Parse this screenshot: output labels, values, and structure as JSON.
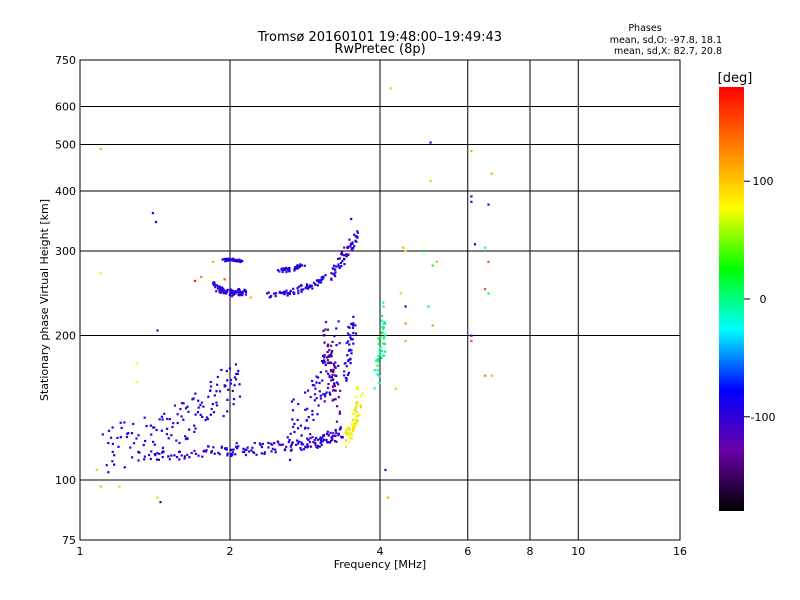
{
  "chart_data": {
    "type": "scatter",
    "title": "Tromsø 20160101 19:48:00–19:49:43",
    "subtitle": "RwPretec (8p)",
    "xlabel": "Frequency [MHz]",
    "ylabel": "Stationary phase Virtual Height [km]",
    "x_scale": "log",
    "y_scale": "log",
    "xlim": [
      1,
      16
    ],
    "ylim": [
      75,
      750
    ],
    "x_ticks": [
      1,
      2,
      4,
      6,
      8,
      10,
      16
    ],
    "y_ticks": [
      75,
      100,
      200,
      300,
      400,
      500,
      600,
      750
    ],
    "x_gridlines": [
      2,
      4,
      6,
      8,
      10
    ],
    "y_gridlines": [
      100,
      200,
      300,
      400,
      500,
      600
    ],
    "grid": true,
    "stats": {
      "heading": "Phases",
      "line_o": "mean, sd,O: -97.8, 18.1",
      "line_x": "mean, sd,X:  82.7, 20.8"
    },
    "colorbar": {
      "label": "[deg]",
      "range": [
        -180,
        180
      ],
      "ticks": [
        100,
        0,
        -100
      ],
      "stops": [
        "#000000",
        "#6a00a8",
        "#0000ff",
        "#00ffff",
        "#00ff00",
        "#ffff00",
        "#ff8000",
        "#ff0000"
      ]
    },
    "traces": [
      {
        "x": [
          1.38,
          1.55,
          1.75,
          1.95,
          2.05,
          2.2,
          2.4,
          2.6,
          2.8,
          2.95,
          3.05,
          3.15,
          3.25,
          3.35
        ],
        "y": [
          112,
          113,
          114,
          115,
          116,
          116,
          117,
          118,
          119,
          120,
          121,
          122,
          124,
          126
        ],
        "phase": -100,
        "spread": 0.06
      },
      {
        "x": [
          1.12,
          1.2,
          1.3,
          1.4,
          1.5,
          1.6,
          1.7,
          1.8,
          1.9,
          2.0,
          2.1
        ],
        "y": [
          115,
          118,
          121,
          124,
          128,
          133,
          138,
          144,
          150,
          156,
          162
        ],
        "phase": -95,
        "spread": 0.22
      },
      {
        "x": [
          2.6,
          2.75,
          2.9,
          3.0,
          3.1,
          3.2,
          3.3
        ],
        "y": [
          125,
          132,
          140,
          150,
          160,
          175,
          195
        ],
        "phase": -95,
        "spread": 0.28
      },
      {
        "x": [
          3.1,
          3.15,
          3.2,
          3.25,
          3.3
        ],
        "y": [
          200,
          185,
          170,
          155,
          140
        ],
        "phase": -130,
        "spread": 0.2
      },
      {
        "x": [
          3.4,
          3.5,
          3.55,
          3.6,
          3.65
        ],
        "y": [
          122,
          125,
          130,
          140,
          155
        ],
        "phase": 80,
        "spread": 0.08
      },
      {
        "x": [
          3.4,
          3.45,
          3.5,
          3.55
        ],
        "y": [
          165,
          180,
          200,
          215
        ],
        "phase": -90,
        "spread": 0.1
      },
      {
        "x": [
          1.85,
          1.9,
          1.95,
          2.0,
          2.05,
          2.1,
          2.15
        ],
        "y": [
          255,
          250,
          248,
          245,
          247,
          246,
          245
        ],
        "phase": -100,
        "spread": 0.03
      },
      {
        "x": [
          2.4,
          2.55,
          2.7,
          2.85,
          3.0,
          3.1
        ],
        "y": [
          243,
          245,
          248,
          252,
          258,
          265
        ],
        "phase": -95,
        "spread": 0.03
      },
      {
        "x": [
          3.2,
          3.3,
          3.4,
          3.5,
          3.6
        ],
        "y": [
          265,
          280,
          295,
          310,
          325
        ],
        "phase": -105,
        "spread": 0.04
      },
      {
        "x": [
          1.95,
          2.0,
          2.05,
          2.1
        ],
        "y": [
          287,
          288,
          287,
          286
        ],
        "phase": -100,
        "spread": 0.01
      },
      {
        "x": [
          2.5,
          2.6,
          2.7,
          2.8
        ],
        "y": [
          272,
          274,
          276,
          280
        ],
        "phase": -90,
        "spread": 0.02
      },
      {
        "x": [
          3.9,
          4.0,
          4.05,
          4.1
        ],
        "y": [
          160,
          180,
          200,
          220
        ],
        "phase": 0,
        "spread": 0.15
      }
    ],
    "points": [
      {
        "x": 1.1,
        "y": 490,
        "phase": 110
      },
      {
        "x": 1.1,
        "y": 270,
        "phase": 80
      },
      {
        "x": 1.08,
        "y": 105,
        "phase": 100
      },
      {
        "x": 1.1,
        "y": 97,
        "phase": 110
      },
      {
        "x": 1.2,
        "y": 97,
        "phase": 100
      },
      {
        "x": 1.4,
        "y": 360,
        "phase": -100
      },
      {
        "x": 1.42,
        "y": 345,
        "phase": -100
      },
      {
        "x": 1.43,
        "y": 205,
        "phase": -100
      },
      {
        "x": 1.45,
        "y": 90,
        "phase": -110
      },
      {
        "x": 1.43,
        "y": 92,
        "phase": 100
      },
      {
        "x": 4.2,
        "y": 655,
        "phase": 100
      },
      {
        "x": 5.05,
        "y": 505,
        "phase": -110
      },
      {
        "x": 5.05,
        "y": 420,
        "phase": 100
      },
      {
        "x": 6.1,
        "y": 485,
        "phase": 110
      },
      {
        "x": 6.1,
        "y": 390,
        "phase": -100
      },
      {
        "x": 6.1,
        "y": 380,
        "phase": -105
      },
      {
        "x": 6.6,
        "y": 375,
        "phase": -105
      },
      {
        "x": 6.7,
        "y": 435,
        "phase": 110
      },
      {
        "x": 6.2,
        "y": 310,
        "phase": -80
      },
      {
        "x": 6.5,
        "y": 305,
        "phase": 0
      },
      {
        "x": 6.6,
        "y": 285,
        "phase": 150
      },
      {
        "x": 6.5,
        "y": 250,
        "phase": 150
      },
      {
        "x": 6.6,
        "y": 245,
        "phase": 0
      },
      {
        "x": 6.1,
        "y": 195,
        "phase": 150
      },
      {
        "x": 6.1,
        "y": 200,
        "phase": -100
      },
      {
        "x": 6.5,
        "y": 165,
        "phase": 130
      },
      {
        "x": 6.7,
        "y": 165,
        "phase": 110
      },
      {
        "x": 4.45,
        "y": 305,
        "phase": 110
      },
      {
        "x": 4.5,
        "y": 300,
        "phase": 80
      },
      {
        "x": 4.4,
        "y": 245,
        "phase": 100
      },
      {
        "x": 4.5,
        "y": 230,
        "phase": -100
      },
      {
        "x": 4.5,
        "y": 212,
        "phase": 130
      },
      {
        "x": 4.5,
        "y": 195,
        "phase": 110
      },
      {
        "x": 4.3,
        "y": 155,
        "phase": 100
      },
      {
        "x": 4.1,
        "y": 105,
        "phase": -110
      },
      {
        "x": 4.15,
        "y": 92,
        "phase": 110
      },
      {
        "x": 4.9,
        "y": 300,
        "phase": 20
      },
      {
        "x": 5.1,
        "y": 280,
        "phase": 20
      },
      {
        "x": 5.2,
        "y": 285,
        "phase": 110
      },
      {
        "x": 5.0,
        "y": 230,
        "phase": 0
      },
      {
        "x": 5.1,
        "y": 210,
        "phase": 120
      },
      {
        "x": 1.3,
        "y": 175,
        "phase": 80
      },
      {
        "x": 1.3,
        "y": 160,
        "phase": 80
      },
      {
        "x": 1.85,
        "y": 285,
        "phase": 110
      },
      {
        "x": 1.75,
        "y": 265,
        "phase": 130
      },
      {
        "x": 1.7,
        "y": 260,
        "phase": 170
      },
      {
        "x": 1.95,
        "y": 262,
        "phase": 150
      },
      {
        "x": 2.2,
        "y": 240,
        "phase": 110
      },
      {
        "x": 3.5,
        "y": 350,
        "phase": -80
      },
      {
        "x": 3.6,
        "y": 330,
        "phase": -120
      }
    ]
  }
}
